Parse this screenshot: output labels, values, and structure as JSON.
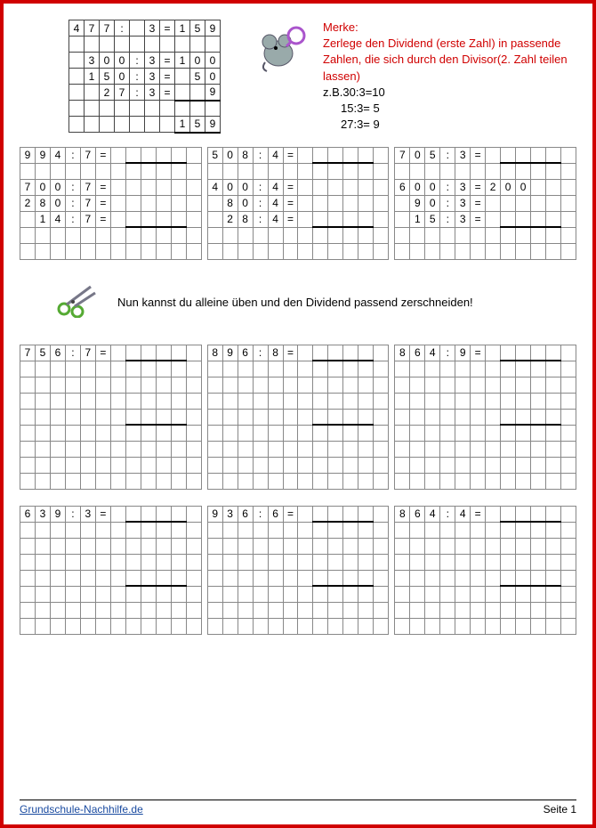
{
  "rule": {
    "heading": "Merke:",
    "text": "Zerlege den Dividend (erste Zahl) in passende Zahlen, die sich durch den Divisor(2. Zahl teilen lassen)",
    "examples": [
      "z.B.30:3=10",
      "15:3= 5",
      "27:3= 9"
    ]
  },
  "example": {
    "main": [
      "4",
      "7",
      "7",
      ":",
      "",
      "3",
      "=",
      "1",
      "5",
      "9"
    ],
    "steps": [
      [
        "3",
        "0",
        "0",
        ":",
        "3",
        "=",
        "1",
        "0",
        "0"
      ],
      [
        "1",
        "5",
        "0",
        ":",
        "3",
        "=",
        "",
        "5",
        "0"
      ],
      [
        "",
        "2",
        "7",
        ":",
        "3",
        "=",
        "",
        "",
        "9"
      ]
    ],
    "result": [
      "1",
      "5",
      "9"
    ]
  },
  "row1_problems": [
    {
      "top": [
        "9",
        "9",
        "4",
        ":",
        "7",
        "="
      ],
      "steps": [
        [
          "7",
          "0",
          "0",
          ":",
          "7",
          "="
        ],
        [
          "2",
          "8",
          "0",
          ":",
          "7",
          "="
        ],
        [
          "",
          "1",
          "4",
          ":",
          "7",
          "="
        ]
      ]
    },
    {
      "top": [
        "5",
        "0",
        "8",
        ":",
        "4",
        "="
      ],
      "steps": [
        [
          "4",
          "0",
          "0",
          ":",
          "4",
          "="
        ],
        [
          "",
          "8",
          "0",
          ":",
          "4",
          "="
        ],
        [
          "",
          "2",
          "8",
          ":",
          "4",
          "="
        ]
      ]
    },
    {
      "top": [
        "7",
        "0",
        "5",
        ":",
        "3",
        "="
      ],
      "steps": [
        [
          "6",
          "0",
          "0",
          ":",
          "3",
          "=",
          "2",
          "0",
          "0"
        ],
        [
          "",
          "9",
          "0",
          ":",
          "3",
          "=",
          "",
          "",
          ""
        ],
        [
          "",
          "1",
          "5",
          ":",
          "3",
          "=",
          "",
          "",
          ""
        ]
      ]
    }
  ],
  "hint": "Nun kannst du alleine üben und den Dividend passend zerschneiden!",
  "row2_problems": [
    {
      "top": [
        "7",
        "5",
        "6",
        ":",
        "7",
        "="
      ]
    },
    {
      "top": [
        "8",
        "9",
        "6",
        ":",
        "8",
        "="
      ]
    },
    {
      "top": [
        "8",
        "6",
        "4",
        ":",
        "9",
        "="
      ]
    }
  ],
  "row3_problems": [
    {
      "top": [
        "6",
        "3",
        "9",
        ":",
        "3",
        "="
      ]
    },
    {
      "top": [
        "9",
        "3",
        "6",
        ":",
        "6",
        "="
      ]
    },
    {
      "top": [
        "8",
        "6",
        "4",
        ":",
        "4",
        "="
      ]
    }
  ],
  "footer": {
    "link": "Grundschule-Nachhilfe.de",
    "page": "Seite 1"
  }
}
